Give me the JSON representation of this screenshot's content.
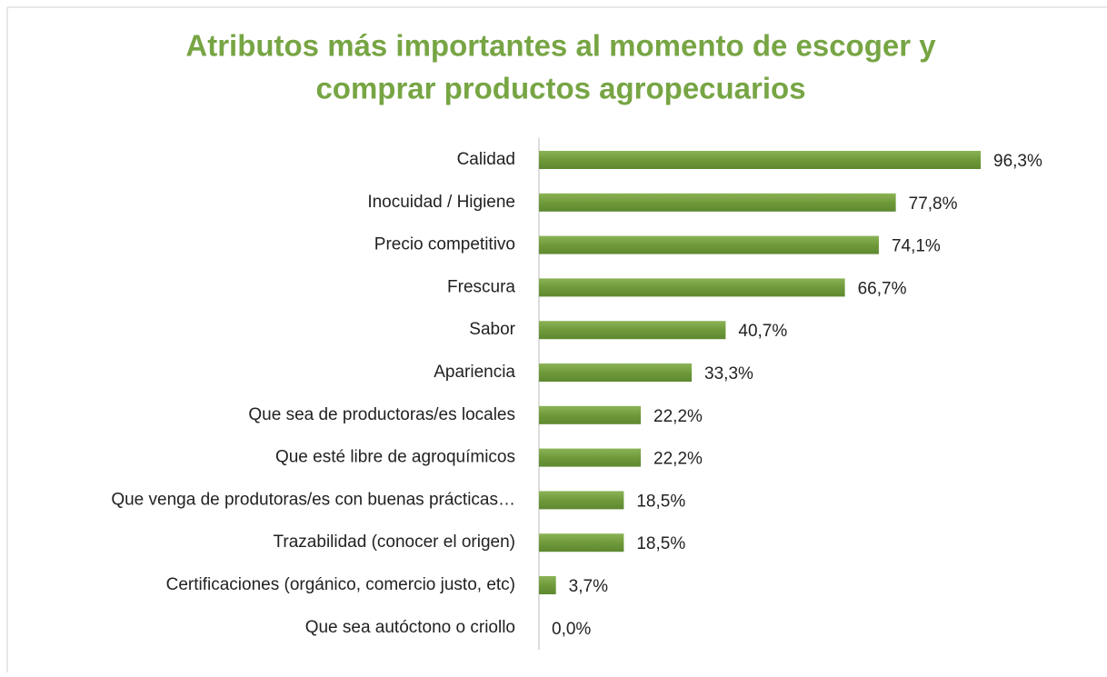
{
  "chart_data": {
    "type": "bar",
    "orientation": "horizontal",
    "title": [
      "Atributos más importantes al momento de escoger y",
      "comprar productos agropecuarios"
    ],
    "categories": [
      "Calidad",
      "Inocuidad / Higiene",
      "Precio competitivo",
      "Frescura",
      "Sabor",
      "Apariencia",
      "Que sea de productoras/es locales",
      "Que esté libre de agroquímicos",
      "Que venga de produtoras/es con buenas prácticas…",
      "Trazabilidad (conocer el origen)",
      "Certificaciones (orgánico, comercio justo, etc)",
      "Que sea autóctono o criollo"
    ],
    "values": [
      96.3,
      77.8,
      74.1,
      66.7,
      40.7,
      33.3,
      22.2,
      22.2,
      18.5,
      18.5,
      3.7,
      0.0
    ],
    "value_labels": [
      "96,3%",
      "77,8%",
      "74,1%",
      "66,7%",
      "40,7%",
      "33,3%",
      "22,2%",
      "22,2%",
      "18,5%",
      "18,5%",
      "3,7%",
      "0,0%"
    ],
    "color": "#70993a"
  }
}
